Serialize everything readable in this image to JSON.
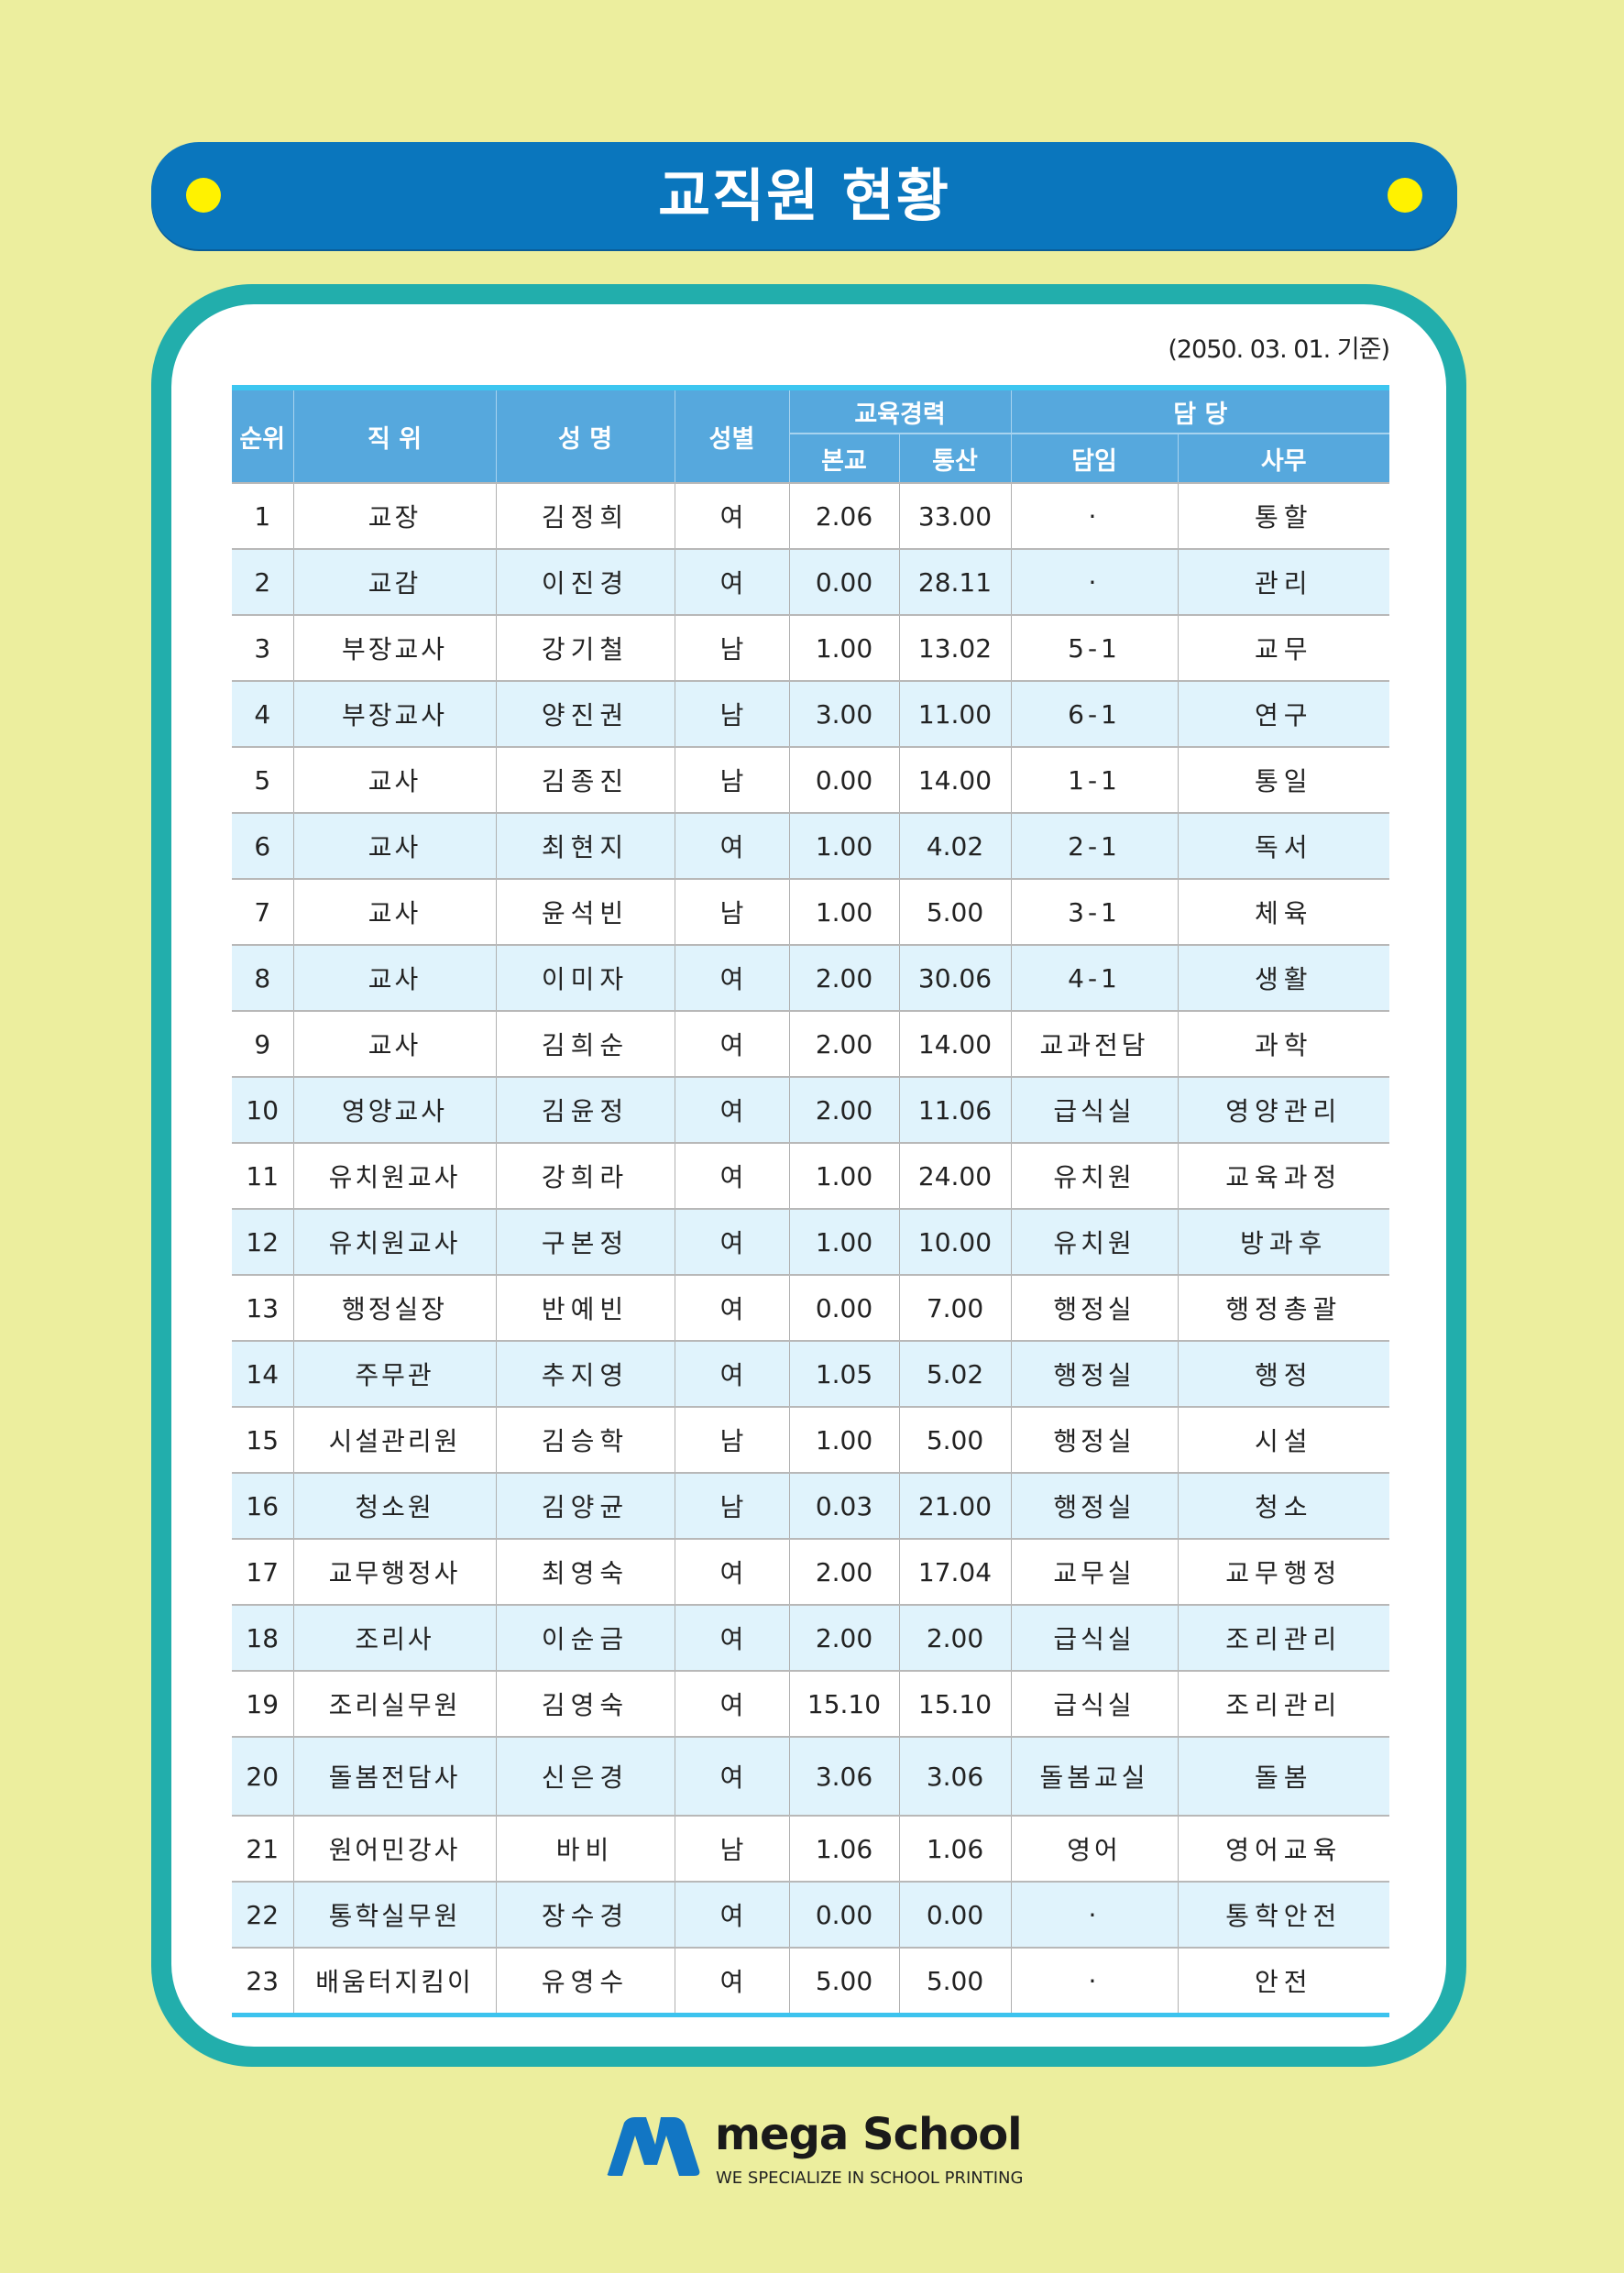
{
  "title": "교직원 현황",
  "as_of": "(2050. 03. 01. 기준)",
  "colors": {
    "background": "#ecee9e",
    "title_bar": "#0a76bd",
    "dot": "#fff200",
    "panel": "#22aeac",
    "header": "#56a8dd",
    "alt_row": "#e0f3fc"
  },
  "table": {
    "headers": {
      "rank": "순위",
      "position": "직 위",
      "name": "성 명",
      "gender": "성별",
      "career": "교육경력",
      "career_school": "본교",
      "career_total": "통산",
      "charge": "담 당",
      "charge_class": "담임",
      "charge_task": "사무"
    },
    "rows": [
      [
        "1",
        "교장",
        "김정희",
        "여",
        "2.06",
        "33.00",
        "·",
        "통할"
      ],
      [
        "2",
        "교감",
        "이진경",
        "여",
        "0.00",
        "28.11",
        "·",
        "관리"
      ],
      [
        "3",
        "부장교사",
        "강기철",
        "남",
        "1.00",
        "13.02",
        "5-1",
        "교무"
      ],
      [
        "4",
        "부장교사",
        "양진권",
        "남",
        "3.00",
        "11.00",
        "6-1",
        "연구"
      ],
      [
        "5",
        "교사",
        "김종진",
        "남",
        "0.00",
        "14.00",
        "1-1",
        "통일"
      ],
      [
        "6",
        "교사",
        "최현지",
        "여",
        "1.00",
        "4.02",
        "2-1",
        "독서"
      ],
      [
        "7",
        "교사",
        "윤석빈",
        "남",
        "1.00",
        "5.00",
        "3-1",
        "체육"
      ],
      [
        "8",
        "교사",
        "이미자",
        "여",
        "2.00",
        "30.06",
        "4-1",
        "생활"
      ],
      [
        "9",
        "교사",
        "김희순",
        "여",
        "2.00",
        "14.00",
        "교과전담",
        "과학"
      ],
      [
        "10",
        "영양교사",
        "김윤정",
        "여",
        "2.00",
        "11.06",
        "급식실",
        "영양관리"
      ],
      [
        "11",
        "유치원교사",
        "강희라",
        "여",
        "1.00",
        "24.00",
        "유치원",
        "교육과정"
      ],
      [
        "12",
        "유치원교사",
        "구본정",
        "여",
        "1.00",
        "10.00",
        "유치원",
        "방과후"
      ],
      [
        "13",
        "행정실장",
        "반예빈",
        "여",
        "0.00",
        "7.00",
        "행정실",
        "행정총괄"
      ],
      [
        "14",
        "주무관",
        "추지영",
        "여",
        "1.05",
        "5.02",
        "행정실",
        "행정"
      ],
      [
        "15",
        "시설관리원",
        "김승학",
        "남",
        "1.00",
        "5.00",
        "행정실",
        "시설"
      ],
      [
        "16",
        "청소원",
        "김양균",
        "남",
        "0.03",
        "21.00",
        "행정실",
        "청소"
      ],
      [
        "17",
        "교무행정사",
        "최영숙",
        "여",
        "2.00",
        "17.04",
        "교무실",
        "교무행정"
      ],
      [
        "18",
        "조리사",
        "이순금",
        "여",
        "2.00",
        "2.00",
        "급식실",
        "조리관리"
      ],
      [
        "19",
        "조리실무원",
        "김영숙",
        "여",
        "15.10",
        "15.10",
        "급식실",
        "조리관리"
      ],
      [
        "20",
        "돌봄전담사",
        "신은경",
        "여",
        "3.06",
        "3.06",
        "돌봄교실",
        "돌봄"
      ],
      [
        "21",
        "원어민강사",
        "바비",
        "남",
        "1.06",
        "1.06",
        "영어",
        "영어교육"
      ],
      [
        "22",
        "통학실무원",
        "장수경",
        "여",
        "0.00",
        "0.00",
        "·",
        "통학안전"
      ],
      [
        "23",
        "배움터지킴이",
        "유영수",
        "여",
        "5.00",
        "5.00",
        "·",
        "안전"
      ]
    ]
  },
  "logo": {
    "mark_text": "mega",
    "brand": "mega School",
    "tagline": "WE SPECIALIZE IN SCHOOL PRINTING"
  }
}
